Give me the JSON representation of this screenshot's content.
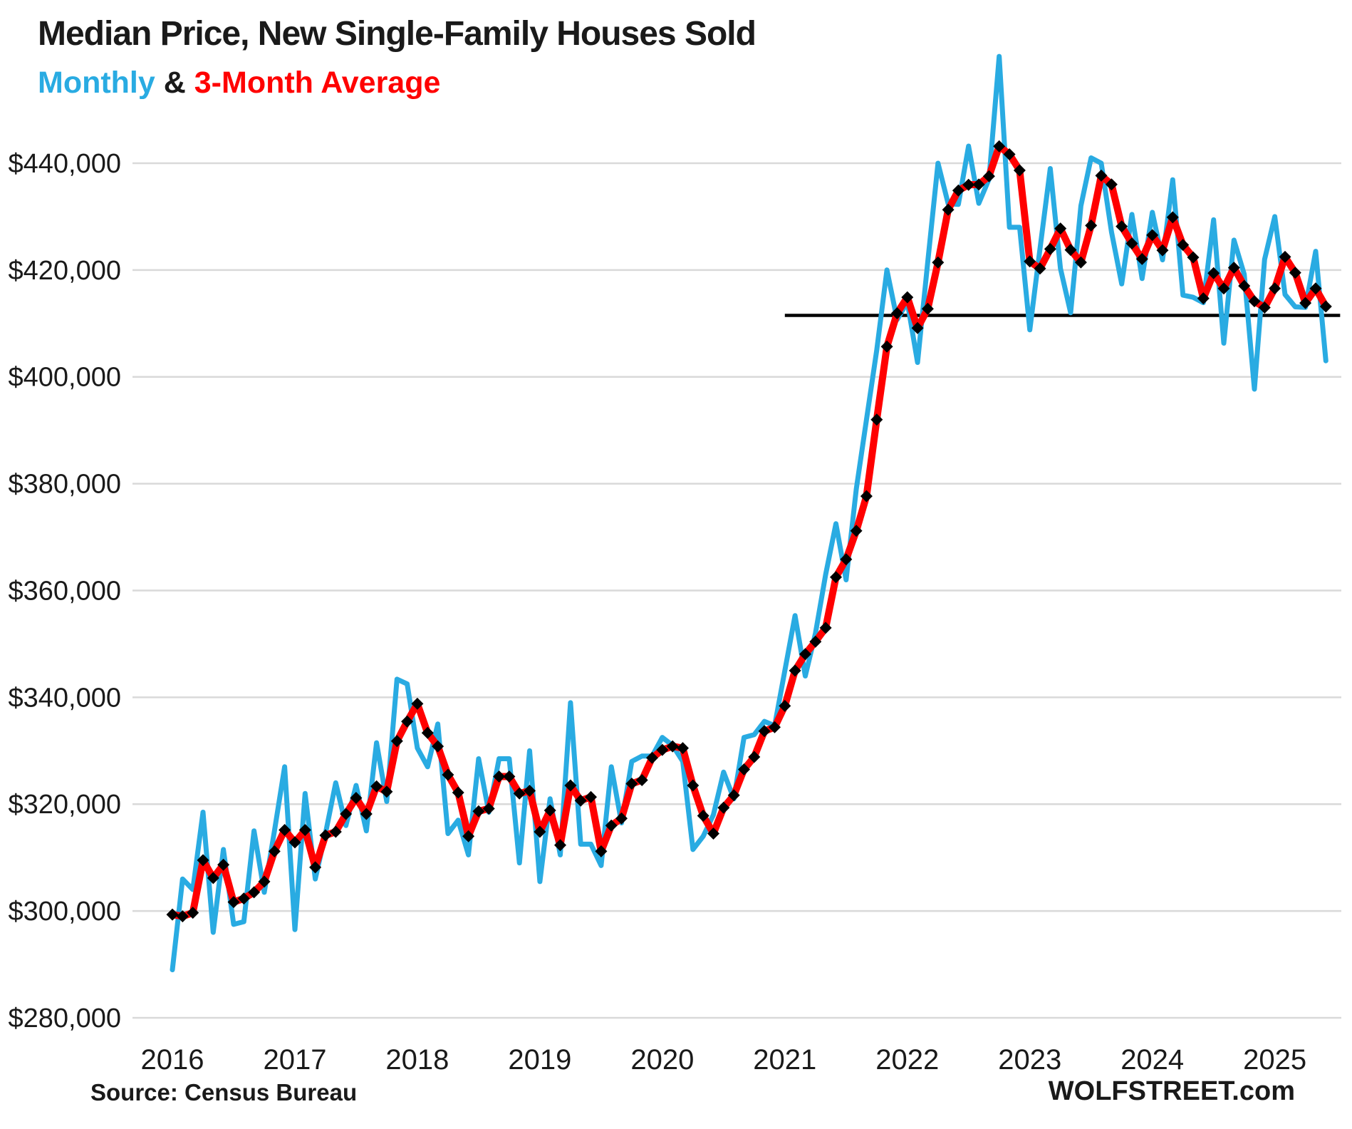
{
  "header": {
    "title": "Median Price, New Single-Family Houses Sold",
    "subtitle_monthly": "Monthly",
    "subtitle_amp": " & ",
    "subtitle_average": "3-Month Average"
  },
  "footer": {
    "source": "Source: Census Bureau",
    "watermark": "WOLFSTREET.com"
  },
  "colors": {
    "monthly_line": "#29ABE2",
    "average_line": "#FF0000",
    "average_marker": "#000000",
    "reference_line": "#000000",
    "gridline": "#D9D9D9",
    "axis_text": "#1a1a1a",
    "title_text": "#1a1a1a"
  },
  "chart_data": {
    "type": "line",
    "title": "Median Price, New Single-Family Houses Sold",
    "subtitle": "Monthly & 3-Month Average",
    "source": "Source: Census Bureau",
    "unit": "USD, median sales price",
    "grid": true,
    "legend_position": "in-subtitle",
    "start_month": "2016-01",
    "end_month": "2025-06",
    "series": [
      {
        "name": "Monthly",
        "color_key": "monthly_line",
        "values_thousands": [
          289,
          306,
          304,
          318.5,
          296,
          311.5,
          297.5,
          298,
          315,
          303.5,
          315,
          327,
          296.5,
          322,
          306,
          314.5,
          324,
          316,
          323.5,
          315,
          331.5,
          320.5,
          343.4,
          342.5,
          330.5,
          327,
          335,
          314.5,
          317,
          310.5,
          328.5,
          318.5,
          328.5,
          328.5,
          309,
          330,
          305.5,
          321,
          310.5,
          339,
          312.5,
          312.5,
          308.5,
          327,
          316.5,
          328,
          329,
          329,
          332.5,
          331,
          328,
          311.5,
          314,
          318,
          326,
          321,
          332.5,
          333,
          335.5,
          334.7,
          345,
          355.3,
          344,
          352,
          363,
          372.5,
          362,
          379,
          392,
          405,
          420,
          410.7,
          414,
          402.7,
          421.5,
          440,
          432.4,
          432.3,
          443.2,
          432.5,
          437,
          460,
          428,
          428,
          408.8,
          424,
          439,
          420.3,
          412,
          432,
          441,
          440,
          427.1,
          417.4,
          430.4,
          418.4,
          430.8,
          421.9,
          436.9,
          415.3,
          414.9,
          413.9,
          429.4,
          406.3,
          425.6,
          419.2,
          397.7,
          422,
          430,
          415.4,
          413.1,
          413,
          423.5,
          403
        ]
      },
      {
        "name": "3-Month Average",
        "color_key": "average_line",
        "derived": "trailing 3-month mean of Monthly series",
        "seed_prior_values_thousands": [
          307,
          302
        ]
      }
    ],
    "reference_line": {
      "value_thousands": 411.5,
      "start_month_index": 60,
      "end_month_index": 114.4,
      "description": "horizontal level line from Jan 2021"
    },
    "y_axis": {
      "min_thousands": 280,
      "max_thousands": 440,
      "tick_step_thousands": 20,
      "ticks": [
        {
          "value_thousands": 280,
          "label": "$280,000"
        },
        {
          "value_thousands": 300,
          "label": "$300,000"
        },
        {
          "value_thousands": 320,
          "label": "$320,000"
        },
        {
          "value_thousands": 340,
          "label": "$340,000"
        },
        {
          "value_thousands": 360,
          "label": "$360,000"
        },
        {
          "value_thousands": 380,
          "label": "$380,000"
        },
        {
          "value_thousands": 400,
          "label": "$400,000"
        },
        {
          "value_thousands": 420,
          "label": "$420,000"
        },
        {
          "value_thousands": 440,
          "label": "$440,000"
        }
      ]
    },
    "x_axis": {
      "year_ticks": [
        {
          "label": "2016",
          "month_index": 0
        },
        {
          "label": "2017",
          "month_index": 12
        },
        {
          "label": "2018",
          "month_index": 24
        },
        {
          "label": "2019",
          "month_index": 36
        },
        {
          "label": "2020",
          "month_index": 48
        },
        {
          "label": "2021",
          "month_index": 60
        },
        {
          "label": "2022",
          "month_index": 72
        },
        {
          "label": "2023",
          "month_index": 84
        },
        {
          "label": "2024",
          "month_index": 96
        },
        {
          "label": "2025",
          "month_index": 108
        }
      ]
    }
  }
}
